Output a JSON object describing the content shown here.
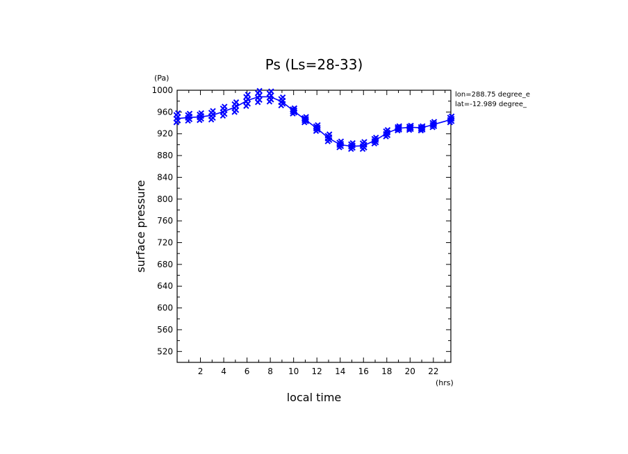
{
  "chart_data": {
    "type": "line",
    "title": "Ps (Ls=28-33)",
    "xlabel": "local time",
    "ylabel": "surface pressure",
    "x_unit": "(hrs)",
    "y_unit": "(Pa)",
    "xlim": [
      0,
      23.5
    ],
    "ylim": [
      500,
      1000
    ],
    "x_ticks": [
      2,
      4,
      6,
      8,
      10,
      12,
      14,
      16,
      18,
      20,
      22
    ],
    "y_ticks": [
      520,
      560,
      600,
      640,
      680,
      720,
      760,
      800,
      840,
      880,
      920,
      960,
      1000
    ],
    "annotations": [
      "lon=288.75 degree_e",
      "lat=-12.989 degree_"
    ],
    "series_color": "#0000ff",
    "mean_line": {
      "x": [
        0,
        1,
        2,
        3,
        4,
        5,
        6,
        7,
        8,
        9,
        10,
        11,
        12,
        13,
        14,
        15,
        16,
        17,
        18,
        19,
        20,
        21,
        22,
        23,
        23.5
      ],
      "y": [
        948,
        950,
        951,
        954,
        961,
        969,
        981,
        988,
        988,
        979,
        962,
        946,
        930,
        912,
        900,
        897,
        898,
        908,
        921,
        930,
        932,
        931,
        937,
        943,
        947
      ]
    },
    "samples": {
      "x": [
        0,
        1,
        2,
        3,
        4,
        5,
        6,
        7,
        8,
        9,
        10,
        11,
        12,
        13,
        14,
        15,
        16,
        17,
        18,
        19,
        20,
        21,
        22,
        23.5
      ],
      "y_min": [
        941,
        944,
        945,
        946,
        953,
        960,
        971,
        978,
        979,
        972,
        957,
        941,
        925,
        906,
        895,
        892,
        892,
        902,
        915,
        926,
        927,
        926,
        932,
        941
      ],
      "y_max": [
        958,
        957,
        958,
        962,
        970,
        978,
        992,
        999,
        998,
        987,
        967,
        951,
        936,
        919,
        906,
        903,
        905,
        913,
        927,
        934,
        935,
        934,
        942,
        952
      ],
      "marker": "x"
    }
  }
}
